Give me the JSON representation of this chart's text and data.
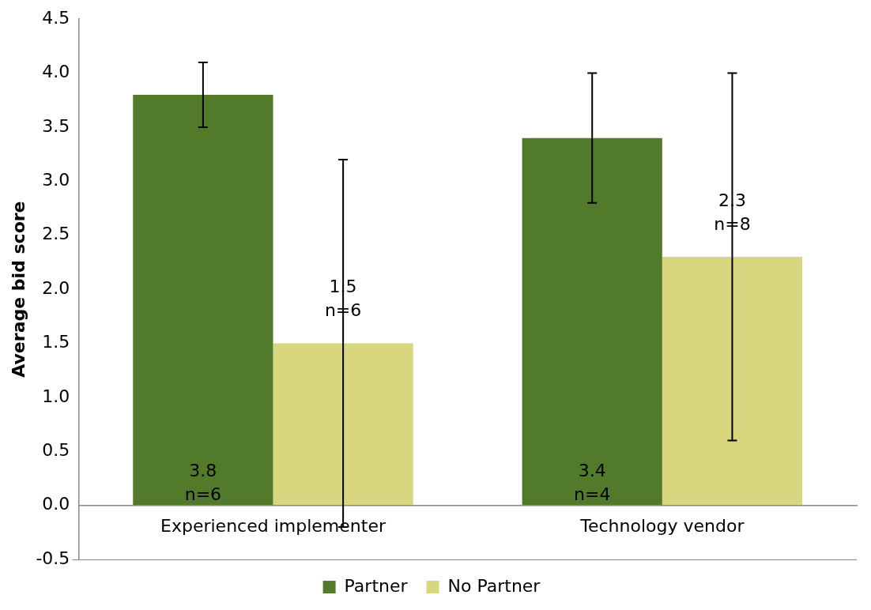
{
  "chart_data": {
    "type": "bar",
    "ylabel": "Average bid score",
    "categories": [
      "Experienced implementer",
      "Technology vendor"
    ],
    "series": [
      {
        "name": "Partner",
        "color": "#527a2b",
        "values": [
          3.8,
          3.4
        ],
        "errors": [
          [
            3.5,
            4.1
          ],
          [
            2.8,
            4.0
          ]
        ],
        "value_labels": [
          "3.8\nn=6",
          "3.4\nn=4"
        ]
      },
      {
        "name": "No Partner",
        "color": "#d8d77f",
        "values": [
          1.5,
          2.3
        ],
        "errors": [
          [
            -0.2,
            3.2
          ],
          [
            0.6,
            4.0
          ]
        ],
        "value_labels": [
          "1.5\nn=6",
          "2.3\nn=8"
        ]
      }
    ],
    "ylim": [
      -0.5,
      4.5
    ],
    "yticks": [
      {
        "value": -0.5,
        "label": "-0.5"
      },
      {
        "value": 0,
        "label": "0.0"
      },
      {
        "value": 0.5,
        "label": "0.5"
      },
      {
        "value": 1,
        "label": "1.0"
      },
      {
        "value": 1.5,
        "label": "1.5"
      },
      {
        "value": 2,
        "label": "2.0"
      },
      {
        "value": 2.5,
        "label": "2.5"
      },
      {
        "value": 3,
        "label": "3.0"
      },
      {
        "value": 3.5,
        "label": "3.5"
      },
      {
        "value": 4,
        "label": "4.0"
      },
      {
        "value": 4.5,
        "label": "4.5"
      }
    ],
    "grid": false,
    "legend": "bottom"
  }
}
